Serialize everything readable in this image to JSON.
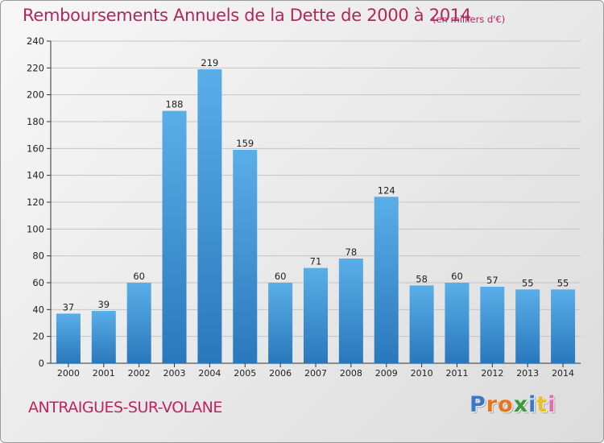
{
  "title": "Remboursements Annuels de la Dette de 2000 à 2014",
  "unit_note": "(en milliers d'€)",
  "city": "ANTRAIGUES-SUR-VOLANE",
  "logo": {
    "text": "Proxiti",
    "letter_colors": [
      "#3a78c8",
      "#e8741c",
      "#e8741c",
      "#3a9a3a",
      "#3a78c8",
      "#e8c020",
      "#e86aa8"
    ]
  },
  "colors": {
    "title": "#b0275a",
    "bar_top": "#5aaee8",
    "bar_bottom": "#2a78bc"
  },
  "chart_data": {
    "type": "bar",
    "title": "Remboursements Annuels de la Dette de 2000 à 2014",
    "xlabel": "",
    "ylabel": "",
    "categories": [
      "2000",
      "2001",
      "2002",
      "2003",
      "2004",
      "2005",
      "2006",
      "2007",
      "2008",
      "2009",
      "2010",
      "2011",
      "2012",
      "2013",
      "2014"
    ],
    "values": [
      37,
      39,
      60,
      188,
      219,
      159,
      60,
      71,
      78,
      124,
      58,
      60,
      57,
      55,
      55
    ],
    "ylim": [
      0,
      240
    ],
    "yticks": [
      0,
      20,
      40,
      60,
      80,
      100,
      120,
      140,
      160,
      180,
      200,
      220,
      240
    ],
    "grid": true,
    "legend": "none"
  }
}
